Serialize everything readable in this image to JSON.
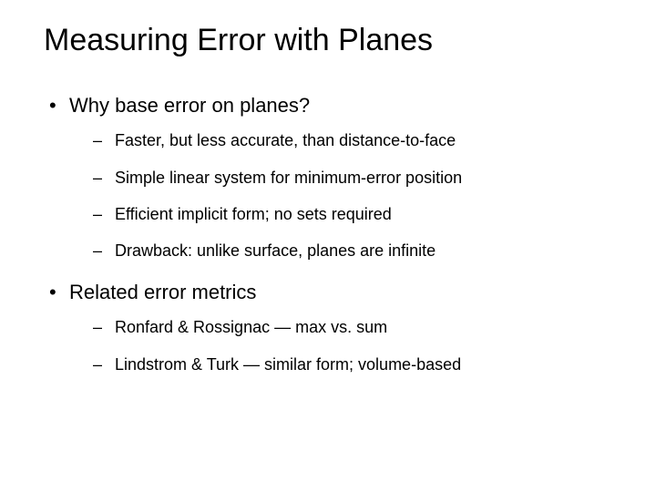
{
  "slide": {
    "background_color": "#ffffff",
    "text_color": "#000000",
    "title": "Measuring Error with Planes",
    "title_fontsize": 34,
    "body_fontsize_l1": 22,
    "body_fontsize_l2": 18,
    "bullets": [
      {
        "text": "Why base error on planes?",
        "children": [
          "Faster, but less accurate, than distance-to-face",
          "Simple linear system for minimum-error position",
          "Efficient implicit form; no sets required",
          "Drawback: unlike surface, planes are infinite"
        ]
      },
      {
        "text": "Related error metrics",
        "children": [
          "Ronfard & Rossignac — max vs. sum",
          "Lindstrom & Turk — similar form; volume-based"
        ]
      }
    ]
  }
}
